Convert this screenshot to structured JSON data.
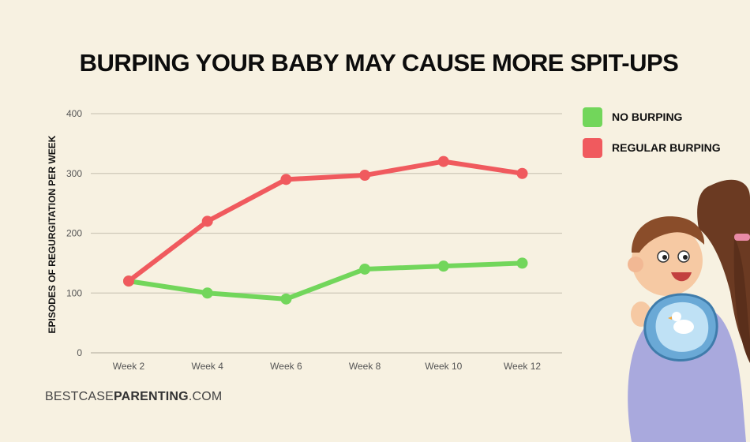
{
  "page": {
    "footer_light_1": "BESTCASE",
    "footer_bold": "PARENTING",
    "footer_light_2": ".COM",
    "illustration": "mother holding baby over shoulder with bib"
  },
  "chart_data": {
    "type": "line",
    "title": "BURPING YOUR BABY MAY CAUSE MORE SPIT-UPS",
    "xlabel": "",
    "ylabel": "EPISODES OF REGURGITATION PER WEEK",
    "categories": [
      "Week 2",
      "Week 4",
      "Week 6",
      "Week 8",
      "Week 10",
      "Week 12"
    ],
    "ylim": [
      0,
      400
    ],
    "yticks": [
      0,
      100,
      200,
      300,
      400
    ],
    "grid": true,
    "legend_position": "top-right",
    "series": [
      {
        "name": "NO BURPING",
        "color": "#72d65b",
        "values": [
          120,
          100,
          90,
          140,
          145,
          150
        ]
      },
      {
        "name": "REGULAR BURPING",
        "color": "#f05a5e",
        "values": [
          120,
          220,
          290,
          297,
          320,
          300
        ]
      }
    ]
  }
}
